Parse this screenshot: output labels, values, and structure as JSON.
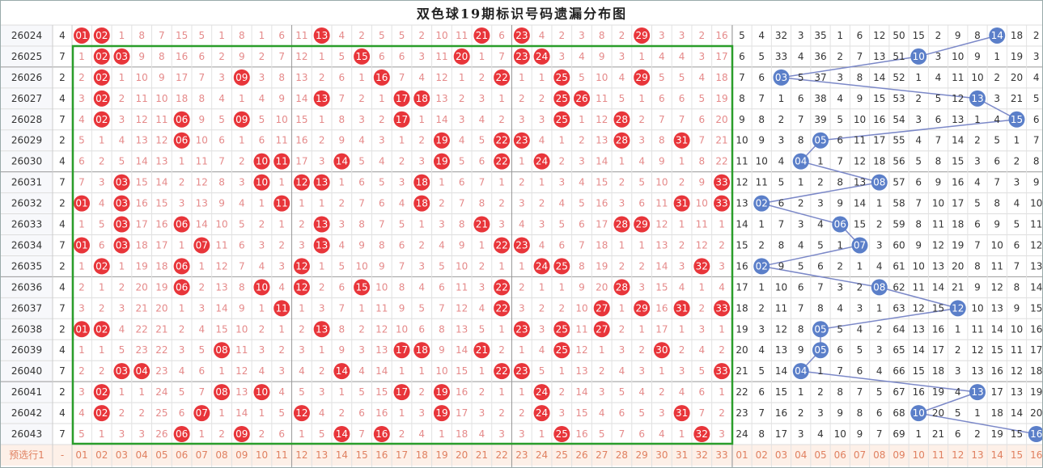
{
  "title": "双色球19期标识号码遗漏分布图",
  "table": {
    "rows": [
      {
        "period": "26024",
        "count": 4,
        "red": [
          "01",
          "02",
          1,
          8,
          7,
          15,
          5,
          1,
          8,
          1,
          6,
          11,
          "13",
          4,
          2,
          5,
          5,
          2,
          10,
          11,
          "21",
          6,
          "23",
          4,
          2,
          3,
          8,
          2,
          "29",
          3,
          3,
          2,
          16
        ],
        "blue": [
          5,
          4,
          32,
          3,
          35,
          1,
          6,
          12,
          50,
          15,
          2,
          9,
          8,
          "14",
          18,
          2
        ]
      },
      {
        "period": "26025",
        "count": 7,
        "red": [
          1,
          "02",
          "03",
          9,
          8,
          16,
          6,
          2,
          9,
          2,
          7,
          12,
          1,
          5,
          "15",
          6,
          6,
          3,
          11,
          "20",
          1,
          7,
          "23",
          "24",
          3,
          4,
          9,
          3,
          1,
          4,
          4,
          3,
          17
        ],
        "blue": [
          6,
          5,
          33,
          4,
          36,
          2,
          7,
          13,
          51,
          "10",
          3,
          10,
          9,
          1,
          19,
          3
        ]
      },
      {
        "period": "26026",
        "count": 2,
        "red": [
          2,
          "02",
          1,
          10,
          9,
          17,
          7,
          3,
          "09",
          3,
          8,
          13,
          2,
          6,
          1,
          "16",
          7,
          4,
          12,
          1,
          2,
          "22",
          1,
          1,
          "25",
          5,
          10,
          4,
          "29",
          5,
          5,
          4,
          18
        ],
        "blue": [
          7,
          6,
          "03",
          5,
          37,
          3,
          8,
          14,
          52,
          1,
          4,
          11,
          10,
          2,
          20,
          4
        ]
      },
      {
        "period": "26027",
        "count": 4,
        "red": [
          3,
          "02",
          2,
          11,
          10,
          18,
          8,
          4,
          1,
          4,
          9,
          14,
          "13",
          7,
          2,
          1,
          "17",
          "18",
          13,
          2,
          3,
          1,
          2,
          2,
          "25",
          "26",
          11,
          5,
          1,
          6,
          6,
          5,
          19
        ],
        "blue": [
          8,
          7,
          1,
          6,
          38,
          4,
          9,
          15,
          53,
          2,
          5,
          12,
          "13",
          3,
          21,
          5
        ]
      },
      {
        "period": "26028",
        "count": 7,
        "red": [
          4,
          "02",
          3,
          12,
          11,
          "06",
          9,
          5,
          "09",
          5,
          10,
          15,
          1,
          8,
          3,
          2,
          "17",
          1,
          14,
          3,
          4,
          2,
          3,
          3,
          "25",
          1,
          12,
          "28",
          2,
          7,
          7,
          6,
          20
        ],
        "blue": [
          9,
          8,
          2,
          7,
          39,
          5,
          10,
          16,
          54,
          3,
          6,
          13,
          1,
          4,
          "15",
          6
        ]
      },
      {
        "period": "26029",
        "count": 2,
        "red": [
          5,
          1,
          4,
          13,
          12,
          "06",
          10,
          6,
          1,
          6,
          11,
          16,
          2,
          9,
          4,
          3,
          1,
          2,
          "19",
          4,
          5,
          "22",
          "23",
          4,
          1,
          2,
          13,
          "28",
          3,
          8,
          "31",
          7,
          21
        ],
        "blue": [
          10,
          9,
          3,
          8,
          "05",
          6,
          11,
          17,
          55,
          4,
          7,
          14,
          2,
          5,
          1,
          7
        ]
      },
      {
        "period": "26030",
        "count": 4,
        "red": [
          6,
          2,
          5,
          14,
          13,
          1,
          11,
          7,
          2,
          "10",
          "11",
          17,
          3,
          "14",
          5,
          4,
          2,
          3,
          "19",
          5,
          6,
          "22",
          1,
          "24",
          2,
          3,
          14,
          1,
          4,
          9,
          1,
          8,
          22
        ],
        "blue": [
          11,
          10,
          4,
          "04",
          1,
          7,
          12,
          18,
          56,
          5,
          8,
          15,
          3,
          6,
          2,
          8
        ]
      },
      {
        "period": "26031",
        "count": 7,
        "red": [
          7,
          3,
          "03",
          15,
          14,
          2,
          12,
          8,
          3,
          "10",
          1,
          "12",
          "13",
          1,
          6,
          5,
          3,
          "18",
          1,
          6,
          7,
          1,
          2,
          1,
          3,
          4,
          15,
          2,
          5,
          10,
          2,
          9,
          "33"
        ],
        "blue": [
          12,
          11,
          5,
          1,
          2,
          8,
          13,
          "08",
          57,
          6,
          9,
          16,
          4,
          7,
          3,
          9
        ]
      },
      {
        "period": "26032",
        "count": 2,
        "red": [
          "01",
          4,
          "03",
          16,
          15,
          3,
          13,
          9,
          4,
          1,
          "11",
          1,
          1,
          2,
          7,
          6,
          4,
          "18",
          2,
          7,
          8,
          2,
          3,
          2,
          4,
          5,
          16,
          3,
          6,
          11,
          "31",
          10,
          "33"
        ],
        "blue": [
          13,
          "02",
          6,
          2,
          3,
          9,
          14,
          1,
          58,
          7,
          10,
          17,
          5,
          8,
          4,
          10
        ]
      },
      {
        "period": "26033",
        "count": 4,
        "red": [
          1,
          5,
          "03",
          17,
          16,
          "06",
          14,
          10,
          5,
          2,
          1,
          2,
          "13",
          3,
          8,
          7,
          5,
          1,
          3,
          8,
          "21",
          3,
          4,
          3,
          5,
          6,
          17,
          "28",
          "29",
          12,
          1,
          11,
          1
        ],
        "blue": [
          14,
          1,
          7,
          3,
          4,
          "06",
          15,
          2,
          59,
          8,
          11,
          18,
          6,
          9,
          5,
          11
        ]
      },
      {
        "period": "26034",
        "count": 7,
        "red": [
          "01",
          6,
          "03",
          18,
          17,
          1,
          "07",
          11,
          6,
          3,
          2,
          3,
          "13",
          4,
          9,
          8,
          6,
          2,
          4,
          9,
          1,
          "22",
          "23",
          4,
          6,
          7,
          18,
          1,
          1,
          13,
          2,
          12,
          2
        ],
        "blue": [
          15,
          2,
          8,
          4,
          5,
          1,
          "07",
          3,
          60,
          9,
          12,
          19,
          7,
          10,
          6,
          12
        ]
      },
      {
        "period": "26035",
        "count": 2,
        "red": [
          1,
          "02",
          1,
          19,
          18,
          "06",
          1,
          12,
          7,
          4,
          3,
          "12",
          1,
          5,
          10,
          9,
          7,
          3,
          5,
          10,
          2,
          1,
          1,
          "24",
          "25",
          8,
          19,
          2,
          2,
          14,
          3,
          "32",
          3
        ],
        "blue": [
          16,
          "02",
          9,
          5,
          6,
          2,
          1,
          4,
          61,
          10,
          13,
          20,
          8,
          11,
          7,
          13
        ]
      },
      {
        "period": "26036",
        "count": 4,
        "red": [
          2,
          1,
          2,
          20,
          19,
          "06",
          2,
          13,
          8,
          "10",
          4,
          "12",
          2,
          6,
          "15",
          10,
          8,
          4,
          6,
          11,
          3,
          "22",
          2,
          1,
          1,
          9,
          20,
          "28",
          3,
          15,
          4,
          1,
          4
        ],
        "blue": [
          17,
          1,
          10,
          6,
          7,
          3,
          2,
          "08",
          62,
          11,
          14,
          21,
          9,
          12,
          8,
          14
        ]
      },
      {
        "period": "26037",
        "count": 7,
        "red": [
          3,
          2,
          3,
          21,
          20,
          1,
          3,
          14,
          9,
          1,
          "11",
          1,
          3,
          7,
          1,
          11,
          9,
          5,
          7,
          12,
          4,
          "22",
          3,
          2,
          2,
          10,
          "27",
          1,
          "29",
          16,
          "31",
          2,
          "33"
        ],
        "blue": [
          18,
          2,
          11,
          7,
          8,
          4,
          3,
          1,
          63,
          12,
          15,
          "12",
          10,
          13,
          9,
          15
        ]
      },
      {
        "period": "26038",
        "count": 2,
        "red": [
          "01",
          "02",
          4,
          22,
          21,
          2,
          4,
          15,
          10,
          2,
          1,
          2,
          "13",
          8,
          2,
          12,
          10,
          6,
          8,
          13,
          5,
          1,
          "23",
          3,
          "25",
          11,
          "27",
          2,
          1,
          17,
          1,
          3,
          1
        ],
        "blue": [
          19,
          3,
          12,
          8,
          "05",
          5,
          4,
          2,
          64,
          13,
          16,
          1,
          11,
          14,
          10,
          16
        ]
      },
      {
        "period": "26039",
        "count": 4,
        "red": [
          1,
          1,
          5,
          23,
          22,
          3,
          5,
          "08",
          11,
          3,
          2,
          3,
          1,
          9,
          3,
          13,
          "17",
          "18",
          9,
          14,
          "21",
          2,
          1,
          4,
          "25",
          12,
          1,
          3,
          2,
          "30",
          2,
          4,
          2
        ],
        "blue": [
          20,
          4,
          13,
          9,
          "05",
          6,
          5,
          3,
          65,
          14,
          17,
          2,
          12,
          15,
          11,
          17
        ]
      },
      {
        "period": "26040",
        "count": 7,
        "red": [
          2,
          2,
          "03",
          "04",
          23,
          4,
          6,
          1,
          12,
          4,
          3,
          4,
          2,
          "14",
          4,
          14,
          1,
          1,
          10,
          15,
          1,
          "22",
          "23",
          5,
          1,
          13,
          2,
          4,
          3,
          1,
          3,
          5,
          "33"
        ],
        "blue": [
          21,
          5,
          14,
          "04",
          1,
          7,
          6,
          4,
          66,
          15,
          18,
          3,
          13,
          16,
          12,
          18
        ]
      },
      {
        "period": "26041",
        "count": 2,
        "red": [
          3,
          "02",
          1,
          1,
          24,
          5,
          7,
          "08",
          13,
          "10",
          4,
          5,
          3,
          1,
          5,
          15,
          "17",
          2,
          "19",
          16,
          2,
          1,
          1,
          "24",
          2,
          14,
          3,
          5,
          4,
          2,
          4,
          6,
          1
        ],
        "blue": [
          22,
          6,
          15,
          1,
          2,
          8,
          7,
          5,
          67,
          16,
          19,
          4,
          "13",
          17,
          13,
          19
        ]
      },
      {
        "period": "26042",
        "count": 4,
        "red": [
          4,
          "02",
          2,
          2,
          25,
          6,
          "07",
          1,
          14,
          1,
          5,
          "12",
          4,
          2,
          6,
          16,
          1,
          3,
          "19",
          17,
          3,
          2,
          2,
          "24",
          3,
          15,
          4,
          6,
          5,
          3,
          "31",
          7,
          2
        ],
        "blue": [
          23,
          7,
          16,
          2,
          3,
          9,
          8,
          6,
          68,
          "10",
          20,
          5,
          1,
          18,
          14,
          20
        ]
      },
      {
        "period": "26043",
        "count": 7,
        "red": [
          5,
          1,
          3,
          3,
          26,
          "06",
          1,
          2,
          "09",
          2,
          6,
          1,
          5,
          "14",
          7,
          "16",
          2,
          4,
          1,
          18,
          4,
          3,
          3,
          1,
          "25",
          16,
          5,
          7,
          6,
          4,
          1,
          "32",
          3
        ],
        "blue": [
          24,
          8,
          17,
          3,
          4,
          10,
          9,
          7,
          69,
          1,
          21,
          6,
          2,
          19,
          15,
          "16"
        ]
      }
    ],
    "footer": {
      "label": "预选行1",
      "count": "-",
      "red": [
        "01",
        "02",
        "03",
        "04",
        "05",
        "06",
        "07",
        "08",
        "09",
        "10",
        "11",
        "12",
        "13",
        "14",
        "15",
        "16",
        "17",
        "18",
        "19",
        "20",
        "21",
        "22",
        "23",
        "24",
        "25",
        "26",
        "27",
        "28",
        "29",
        "30",
        "31",
        "32",
        "33"
      ],
      "blue": [
        "01",
        "02",
        "03",
        "04",
        "05",
        "06",
        "07",
        "08",
        "09",
        "10",
        "11",
        "12",
        "13",
        "14",
        "15",
        "16"
      ]
    }
  }
}
